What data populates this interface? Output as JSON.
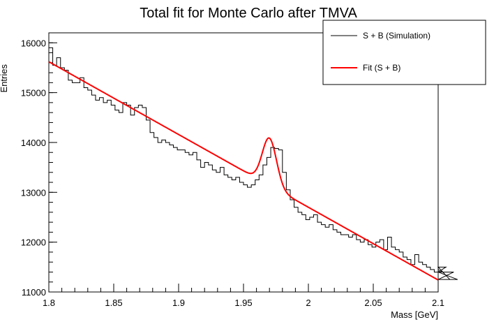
{
  "chart_data": {
    "type": "line",
    "title": "Total fit for Monte Carlo after TMVA",
    "xlabel": "Mass [GeV]",
    "ylabel": "Entries",
    "xlim": [
      1.8,
      2.1
    ],
    "ylim": [
      11000,
      16200
    ],
    "x_ticks": [
      1.8,
      1.85,
      1.9,
      1.95,
      2.0,
      2.05,
      2.1
    ],
    "x_tick_labels": [
      "1.8",
      "1.85",
      "1.9",
      "1.95",
      "2",
      "2.05",
      "2.1"
    ],
    "y_ticks": [
      11000,
      12000,
      13000,
      14000,
      15000,
      16000
    ],
    "y_tick_labels": [
      "11000",
      "12000",
      "13000",
      "14000",
      "15000",
      "16000"
    ],
    "legend_position": "top-right",
    "grid": false,
    "series": [
      {
        "name": "S + B (Simulation)",
        "kind": "histogram",
        "color": "#000000",
        "bin_low": 1.8,
        "bin_width": 0.003,
        "values": [
          15900,
          15550,
          15700,
          15500,
          15450,
          15250,
          15200,
          15200,
          15300,
          15100,
          15050,
          14950,
          14850,
          14900,
          14800,
          14850,
          14750,
          14650,
          14600,
          14800,
          14750,
          14550,
          14700,
          14750,
          14700,
          14450,
          14200,
          14100,
          14000,
          14050,
          14000,
          13950,
          13900,
          13850,
          13850,
          13800,
          13750,
          13800,
          13650,
          13500,
          13600,
          13550,
          13450,
          13400,
          13500,
          13350,
          13300,
          13250,
          13300,
          13200,
          13150,
          13100,
          13150,
          13250,
          13350,
          13550,
          13700,
          13900,
          13880,
          13850,
          13400,
          13050,
          12850,
          12700,
          12600,
          12550,
          12450,
          12500,
          12550,
          12400,
          12350,
          12300,
          12350,
          12250,
          12200,
          12150,
          12150,
          12100,
          12150,
          12050,
          12000,
          12050,
          11950,
          11900,
          12000,
          12050,
          11850,
          12100,
          11900,
          11850,
          11800,
          11700,
          11650,
          11550,
          11750,
          11600,
          11550,
          11500,
          11450,
          11400,
          11450,
          11400,
          11500,
          11250,
          11400,
          11250
        ]
      },
      {
        "name": "Fit (S + B)",
        "kind": "function",
        "color": "#ff0000",
        "model": "linear background + gaussian peak",
        "background_at_xmin": 15620,
        "background_at_xmax": 11240,
        "peak_mean": 1.97,
        "peak_sigma": 0.0055,
        "peak_amplitude": 950
      }
    ]
  }
}
